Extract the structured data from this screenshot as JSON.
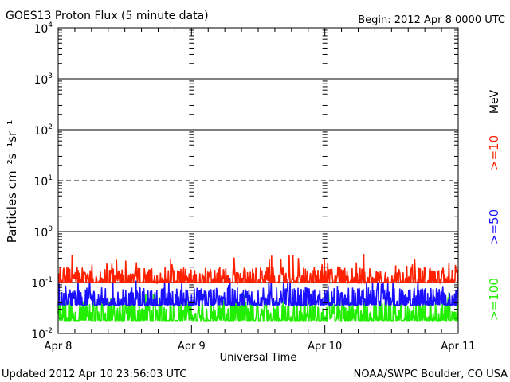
{
  "chart_data": {
    "type": "line",
    "title": "GOES13 Proton Flux (5 minute data)",
    "begin_label": "Begin: 2012 Apr 8 0000 UTC",
    "xlabel": "Universal Time",
    "ylabel": "Particles cm⁻²s⁻¹sr⁻¹",
    "yscale": "log",
    "ylim": [
      0.01,
      10000
    ],
    "y_ticks": [
      {
        "base": "10",
        "exp": "4",
        "value": 10000
      },
      {
        "base": "10",
        "exp": "3",
        "value": 1000
      },
      {
        "base": "10",
        "exp": "2",
        "value": 100
      },
      {
        "base": "10",
        "exp": "1",
        "value": 10
      },
      {
        "base": "10",
        "exp": "0",
        "value": 1
      },
      {
        "base": "10",
        "exp": "-1",
        "value": 0.1
      },
      {
        "base": "10",
        "exp": "-2",
        "value": 0.01
      }
    ],
    "x_ticks": [
      "Apr 8",
      "Apr 9",
      "Apr 10",
      "Apr 11"
    ],
    "xlim_days": [
      0,
      3
    ],
    "sample_interval_minutes": 5,
    "unit_label": "MeV",
    "series": [
      {
        "name": ">=10",
        "color": "#ff2000",
        "baseline": 0.1,
        "typical_high": 0.2,
        "peak": 0.38
      },
      {
        "name": ">=50",
        "color": "#1a10ff",
        "baseline": 0.036,
        "typical_high": 0.08,
        "peak": 0.13
      },
      {
        "name": ">=100",
        "color": "#22ee00",
        "baseline": 0.018,
        "typical_high": 0.045,
        "peak": 0.065
      }
    ],
    "reference_lines": [
      {
        "value": 10,
        "style": "dashed"
      }
    ]
  },
  "footer": {
    "updated": "Updated 2012 Apr 10 23:56:03 UTC",
    "credit": "NOAA/SWPC Boulder, CO USA"
  }
}
